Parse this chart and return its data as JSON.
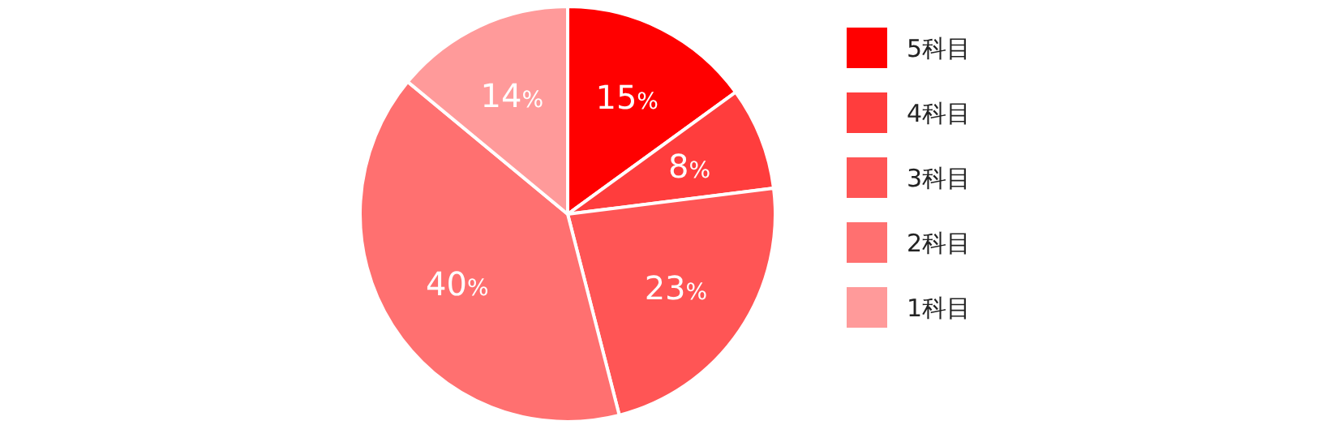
{
  "chart_data": {
    "type": "pie",
    "categories": [
      "5科目",
      "4科目",
      "3科目",
      "2科目",
      "1科目"
    ],
    "values": [
      15,
      8,
      23,
      40,
      14
    ],
    "colors": [
      "#ff0000",
      "#ff3d3d",
      "#ff5555",
      "#ff7070",
      "#ff9a9a"
    ],
    "value_labels": [
      "15%",
      "8%",
      "23%",
      "40%",
      "14%"
    ],
    "legend": "right"
  }
}
